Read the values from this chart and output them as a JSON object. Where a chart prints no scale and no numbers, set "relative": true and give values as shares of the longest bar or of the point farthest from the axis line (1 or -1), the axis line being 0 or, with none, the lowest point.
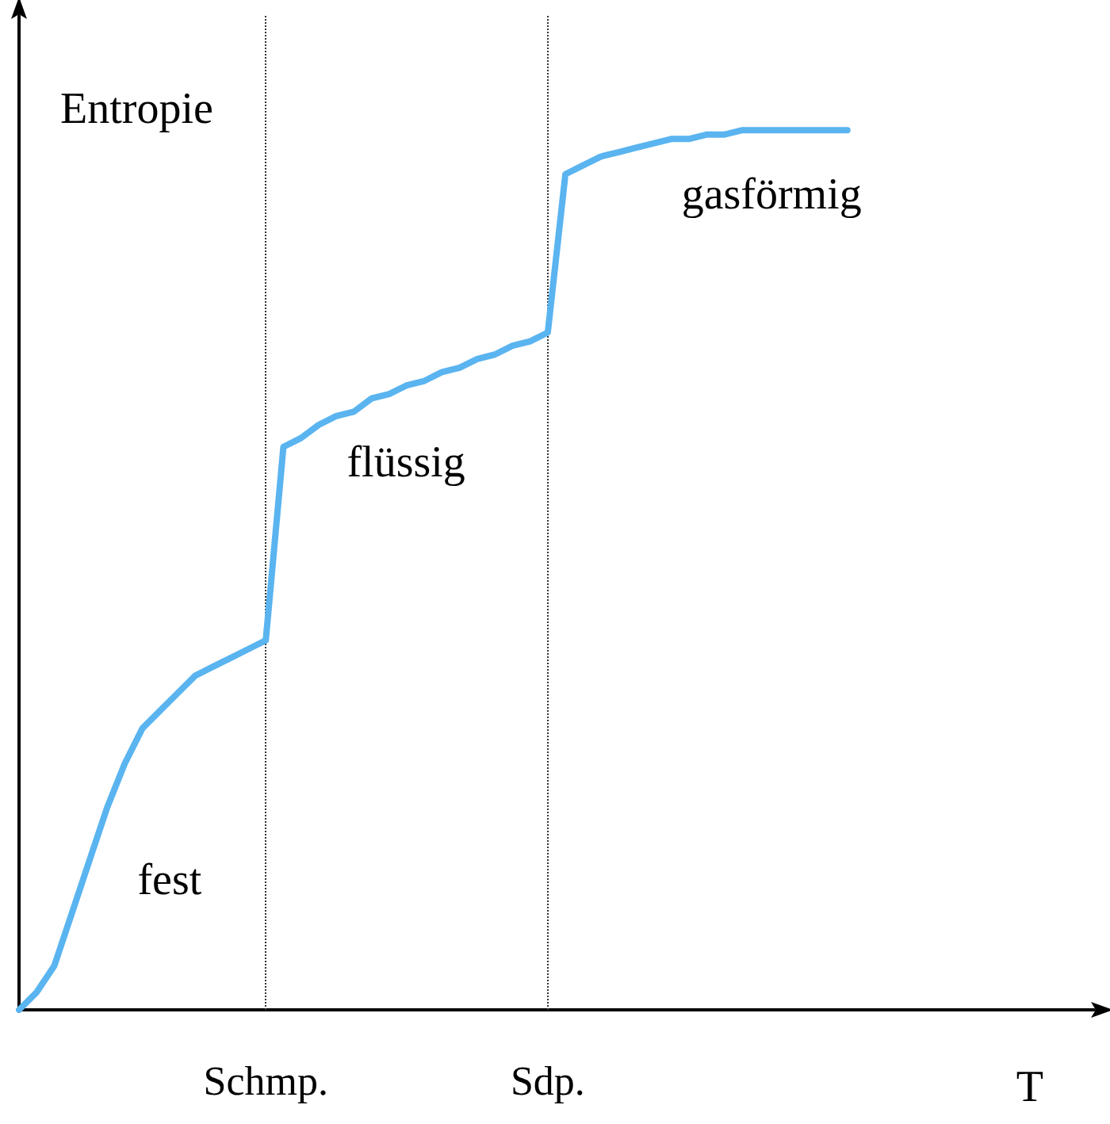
{
  "chart_data": {
    "type": "line",
    "relative": true,
    "xlabel": "T",
    "ylabel": "Entropie",
    "categories": [
      null,
      null,
      null,
      null,
      null,
      null,
      null,
      null,
      null,
      null,
      null,
      null,
      null,
      null,
      "Schmp.",
      null,
      null,
      null,
      null,
      null,
      null,
      null,
      null,
      null,
      null,
      null,
      null,
      null,
      null,
      null,
      "Sdp.",
      null,
      null,
      null,
      null,
      null,
      null,
      null,
      null,
      null,
      null,
      null,
      null,
      null,
      null,
      null,
      null,
      null,
      null,
      null,
      null,
      null,
      null,
      null,
      null,
      null,
      null,
      null,
      null,
      null,
      null,
      null
    ],
    "series": [
      {
        "color": "#5ab4f0",
        "values": [
          0,
          0.02,
          0.05,
          0.11,
          0.17,
          0.23,
          0.28,
          0.32,
          0.34,
          0.36,
          0.38,
          0.39,
          0.4,
          0.41,
          0.42,
          0.64,
          0.65,
          0.665,
          0.675,
          0.68,
          0.695,
          0.7,
          0.71,
          0.715,
          0.725,
          0.73,
          0.74,
          0.745,
          0.755,
          0.76,
          0.77,
          0.95,
          0.96,
          0.97,
          0.975,
          0.98,
          0.985,
          0.99,
          0.99,
          0.995,
          0.995,
          1.0,
          1.0,
          1.0,
          1.0,
          1.0,
          1.0,
          1.0,
          null,
          null,
          null,
          null,
          null,
          null,
          null,
          null,
          null,
          null,
          null,
          null,
          null,
          null
        ]
      }
    ],
    "ref_lines": [
      {
        "axis": "x",
        "value": "Schmp.",
        "line_style": "dotted",
        "color": "#333333"
      },
      {
        "axis": "x",
        "value": "Sdp.",
        "line_style": "dotted",
        "color": "#333333"
      }
    ],
    "annotations": [
      "fest",
      "flüssig",
      "gasförmig"
    ],
    "grid": false,
    "marker": "none",
    "line_style": "solid"
  }
}
